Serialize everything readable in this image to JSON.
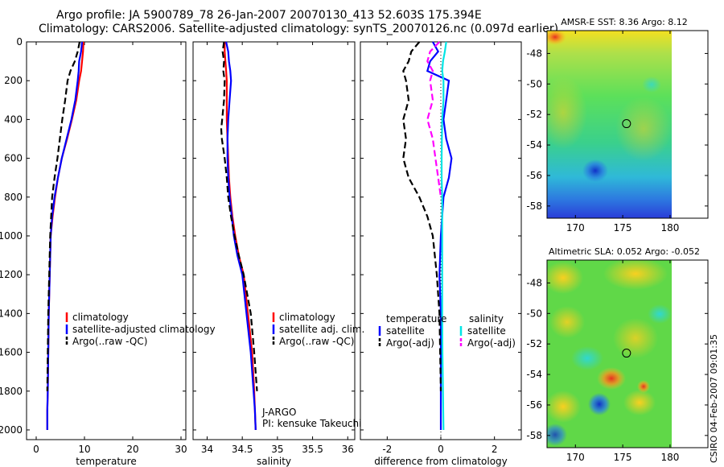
{
  "header": {
    "line1": "Argo profile: JA 5900789_78 26-Jan-2007 20070130_413 52.603S 175.394E",
    "line2": "Climatology: CARS2006. Satellite-adjusted climatology: synTS_20070126.nc (0.097d earlier)"
  },
  "footer_stamp": "CSIRO 04-Feb-2007 09:01:35",
  "colors": {
    "climatology": "#ff0000",
    "satellite": "#0000ff",
    "argo": "#000000",
    "sat_salinity": "#00e5e5",
    "argo_salinity": "#ff00ff"
  },
  "chart_data": [
    {
      "type": "line",
      "id": "temperature",
      "xlabel": "temperature",
      "xlim": [
        -2,
        31
      ],
      "ylim": [
        0,
        2050
      ],
      "y_reversed": true,
      "xticks": [
        0,
        10,
        20,
        30
      ],
      "yticks": [
        0,
        200,
        400,
        600,
        800,
        1000,
        1200,
        1400,
        1600,
        1800,
        2000
      ],
      "legend_location": "lower-right",
      "series": [
        {
          "name": "climatology",
          "color": "#ff0000",
          "dash": "solid",
          "x": [
            9.8,
            9.7,
            9.5,
            9.3,
            8.9,
            8.3,
            7.4,
            6.4,
            5.3,
            4.5,
            3.9,
            3.4,
            3.0,
            2.8,
            2.6,
            2.5,
            2.4,
            2.3,
            2.3
          ],
          "y": [
            0,
            50,
            100,
            150,
            200,
            300,
            400,
            500,
            600,
            700,
            800,
            900,
            1000,
            1200,
            1400,
            1600,
            1800,
            1900,
            2000
          ]
        },
        {
          "name": "satellite-adjusted climatology",
          "color": "#0000ff",
          "dash": "solid",
          "x": [
            9.5,
            9.3,
            8.9,
            8.8,
            8.6,
            8.1,
            7.3,
            6.3,
            5.3,
            4.5,
            3.8,
            3.3,
            3.0,
            2.8,
            2.6,
            2.5,
            2.4,
            2.3,
            2.3
          ],
          "y": [
            0,
            50,
            100,
            150,
            200,
            300,
            400,
            500,
            600,
            700,
            800,
            900,
            1000,
            1200,
            1400,
            1600,
            1800,
            1900,
            2000
          ]
        },
        {
          "name": "Argo(..raw -QC)",
          "color": "#000000",
          "dash": "dashed",
          "x": [
            9.0,
            8.6,
            8.0,
            7.1,
            6.5,
            6.0,
            5.4,
            4.9,
            4.4,
            3.8,
            3.3,
            2.9,
            2.7,
            2.5,
            2.4,
            2.3
          ],
          "y": [
            0,
            50,
            100,
            150,
            200,
            300,
            400,
            500,
            600,
            700,
            800,
            1000,
            1200,
            1400,
            1600,
            1800
          ]
        }
      ],
      "texts": {
        "legend": [
          "climatology",
          "satellite-adjusted climatology",
          "Argo(..raw -QC)"
        ]
      }
    },
    {
      "type": "line",
      "id": "salinity",
      "xlabel": "salinity",
      "xlim": [
        33.8,
        36.1
      ],
      "ylim": [
        0,
        2050
      ],
      "y_reversed": true,
      "xticks": [
        34,
        34.5,
        35,
        35.5,
        36
      ],
      "xticklabels": [
        "34",
        "34.5",
        "35",
        "35.5",
        "36"
      ],
      "legend_location": "lower-right",
      "annotation": [
        "J-ARGO",
        "PI: kensuke Takeuchi"
      ],
      "series": [
        {
          "name": "climatology",
          "color": "#ff0000",
          "dash": "solid",
          "x": [
            34.25,
            34.25,
            34.26,
            34.27,
            34.28,
            34.28,
            34.28,
            34.29,
            34.3,
            34.31,
            34.33,
            34.36,
            34.4,
            34.45,
            34.52,
            34.58,
            34.64,
            34.67,
            34.68,
            34.69
          ],
          "y": [
            0,
            50,
            100,
            150,
            200,
            300,
            400,
            500,
            600,
            700,
            800,
            900,
            1000,
            1100,
            1200,
            1400,
            1600,
            1800,
            1900,
            2000
          ]
        },
        {
          "name": "satellite adj. clim.",
          "color": "#0000ff",
          "dash": "solid",
          "x": [
            34.27,
            34.3,
            34.31,
            34.33,
            34.34,
            34.32,
            34.3,
            34.29,
            34.29,
            34.3,
            34.32,
            34.35,
            34.38,
            34.43,
            34.5,
            34.56,
            34.62,
            34.66,
            34.68,
            34.69
          ],
          "y": [
            0,
            50,
            100,
            150,
            200,
            300,
            400,
            500,
            600,
            700,
            800,
            900,
            1000,
            1100,
            1200,
            1400,
            1600,
            1800,
            1900,
            2000
          ]
        },
        {
          "name": "Argo(..raw -QC)",
          "color": "#000000",
          "dash": "dashed",
          "x": [
            34.24,
            34.22,
            34.24,
            34.23,
            34.25,
            34.24,
            34.2,
            34.21,
            34.25,
            34.28,
            34.3,
            34.34,
            34.39,
            34.45,
            34.52,
            34.62,
            34.67,
            34.71
          ],
          "y": [
            0,
            50,
            100,
            150,
            200,
            300,
            450,
            500,
            600,
            700,
            800,
            900,
            1000,
            1100,
            1200,
            1400,
            1600,
            1800
          ]
        }
      ],
      "texts": {
        "legend": [
          "climatology",
          "satellite adj. clim.",
          "Argo(..raw -QC)"
        ]
      }
    },
    {
      "type": "line",
      "id": "difference",
      "xlabel": "difference from climatology",
      "xlim": [
        -3,
        3
      ],
      "ylim": [
        0,
        2050
      ],
      "y_reversed": true,
      "xticks": [
        -2,
        0,
        2
      ],
      "legend_location": "lower-center",
      "legend_temperature": {
        "title": "temperature",
        "satellite": "satellite",
        "argo": "Argo(-adj)"
      },
      "legend_salinity": {
        "title": "salinity",
        "satellite": "satellite",
        "argo": "Argo(-adj)"
      },
      "series": [
        {
          "name": "temperature satellite",
          "color": "#0000ff",
          "dash": "solid",
          "x": [
            -0.3,
            -0.1,
            -0.4,
            -0.5,
            0.3,
            0.2,
            0.1,
            0.2,
            0.4,
            0.3,
            0.1,
            0.0,
            -0.05,
            0.0,
            0.0,
            0.0
          ],
          "y": [
            0,
            50,
            100,
            150,
            200,
            300,
            400,
            500,
            600,
            700,
            800,
            1000,
            1200,
            1400,
            1600,
            2000
          ]
        },
        {
          "name": "temperature Argo(-adj)",
          "color": "#000000",
          "dash": "dashed",
          "x": [
            -0.8,
            -1.1,
            -1.2,
            -1.4,
            -1.3,
            -1.2,
            -1.4,
            -1.3,
            -1.4,
            -1.2,
            -0.8,
            -0.5,
            -0.3,
            -0.15,
            -0.05,
            0.0
          ],
          "y": [
            0,
            50,
            100,
            150,
            200,
            300,
            400,
            500,
            600,
            700,
            800,
            900,
            1000,
            1200,
            1400,
            1800
          ]
        },
        {
          "name": "salinity satellite",
          "color": "#00e5e5",
          "dash": "solid",
          "x": [
            0.2,
            0.15,
            0.08,
            0.05,
            0.1,
            0.1,
            0.05,
            0.04,
            0.03,
            0.03,
            0.05,
            0.05,
            0.05,
            0.05,
            0.06,
            0.1
          ],
          "y": [
            0,
            50,
            100,
            150,
            200,
            300,
            400,
            500,
            600,
            700,
            800,
            1000,
            1200,
            1400,
            1600,
            2000
          ]
        },
        {
          "name": "salinity Argo(-adj)",
          "color": "#ff00ff",
          "dash": "dashed",
          "x": [
            -0.05,
            -0.4,
            -0.5,
            -0.3,
            -0.4,
            -0.3,
            -0.5,
            -0.3,
            -0.2,
            -0.1,
            0.0
          ],
          "y": [
            0,
            50,
            100,
            150,
            200,
            300,
            400,
            500,
            600,
            700,
            800
          ]
        }
      ],
      "texts": {
        "legend": [
          "temperature",
          "satellite",
          "Argo(-adj)",
          "salinity",
          "satellite",
          "Argo(-adj)"
        ]
      }
    },
    {
      "type": "heatmap",
      "id": "sst-map",
      "title": "AMSR-E SST: 8.36 Argo: 8.12",
      "xlim": [
        167,
        184
      ],
      "ylim": [
        -58.8,
        -46.5
      ],
      "xticks": [
        170,
        175,
        180
      ],
      "yticks": [
        -48,
        -50,
        -52,
        -54,
        -56,
        -58
      ],
      "argo_position": [
        175.4,
        -52.6
      ]
    },
    {
      "type": "heatmap",
      "id": "sla-map",
      "title": "Altimetric SLA: 0.052 Argo: -0.052",
      "xlim": [
        167,
        184
      ],
      "ylim": [
        -58.8,
        -46.5
      ],
      "xticks": [
        170,
        175,
        180
      ],
      "yticks": [
        -48,
        -50,
        -52,
        -54,
        -56,
        -58
      ],
      "argo_position": [
        175.4,
        -52.6
      ]
    }
  ]
}
